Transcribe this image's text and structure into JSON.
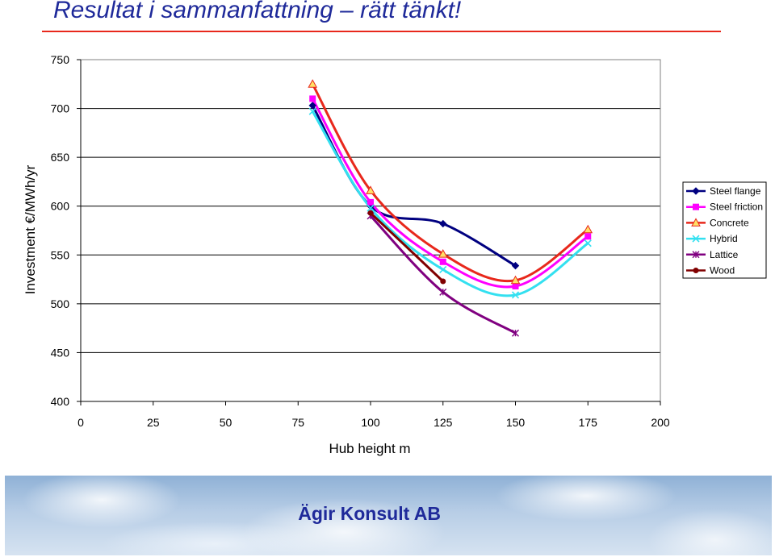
{
  "slide": {
    "title": "Resultat i sammanfattning – rätt tänkt!",
    "footer": "Ägir Konsult AB",
    "title_color": "#1f2a9a",
    "rule_color": "#e8281c"
  },
  "chart_data": {
    "type": "line",
    "title": "",
    "xlabel": "Hub height m",
    "ylabel": "Investment €/MWh/yr",
    "xlim": [
      0,
      200
    ],
    "ylim": [
      400,
      750
    ],
    "xticks": [
      0,
      25,
      50,
      75,
      100,
      125,
      150,
      175,
      200
    ],
    "yticks": [
      400,
      450,
      500,
      550,
      600,
      650,
      700,
      750
    ],
    "grid": "horizontal",
    "legend_position": "right",
    "series": [
      {
        "name": "Steel flange",
        "color": "#000080",
        "marker": "diamond",
        "x": [
          80,
          100,
          125,
          150
        ],
        "y": [
          703,
          600,
          582,
          539
        ]
      },
      {
        "name": "Steel friction",
        "color": "#ff00ff",
        "marker": "square",
        "x": [
          80,
          100,
          125,
          150,
          175
        ],
        "y": [
          710,
          604,
          543,
          518,
          569
        ]
      },
      {
        "name": "Concrete",
        "color": "#e8281c",
        "marker": "triangle",
        "x": [
          80,
          100,
          125,
          150,
          175
        ],
        "y": [
          725,
          616,
          551,
          524,
          576
        ]
      },
      {
        "name": "Hybrid",
        "color": "#33e0f0",
        "marker": "x",
        "x": [
          80,
          100,
          125,
          150,
          175
        ],
        "y": [
          697,
          598,
          535,
          509,
          562
        ]
      },
      {
        "name": "Lattice",
        "color": "#800080",
        "marker": "star",
        "x": [
          100,
          125,
          150
        ],
        "y": [
          590,
          512,
          470
        ]
      },
      {
        "name": "Wood",
        "color": "#800000",
        "marker": "circle",
        "x": [
          100,
          125
        ],
        "y": [
          593,
          523
        ]
      }
    ]
  }
}
